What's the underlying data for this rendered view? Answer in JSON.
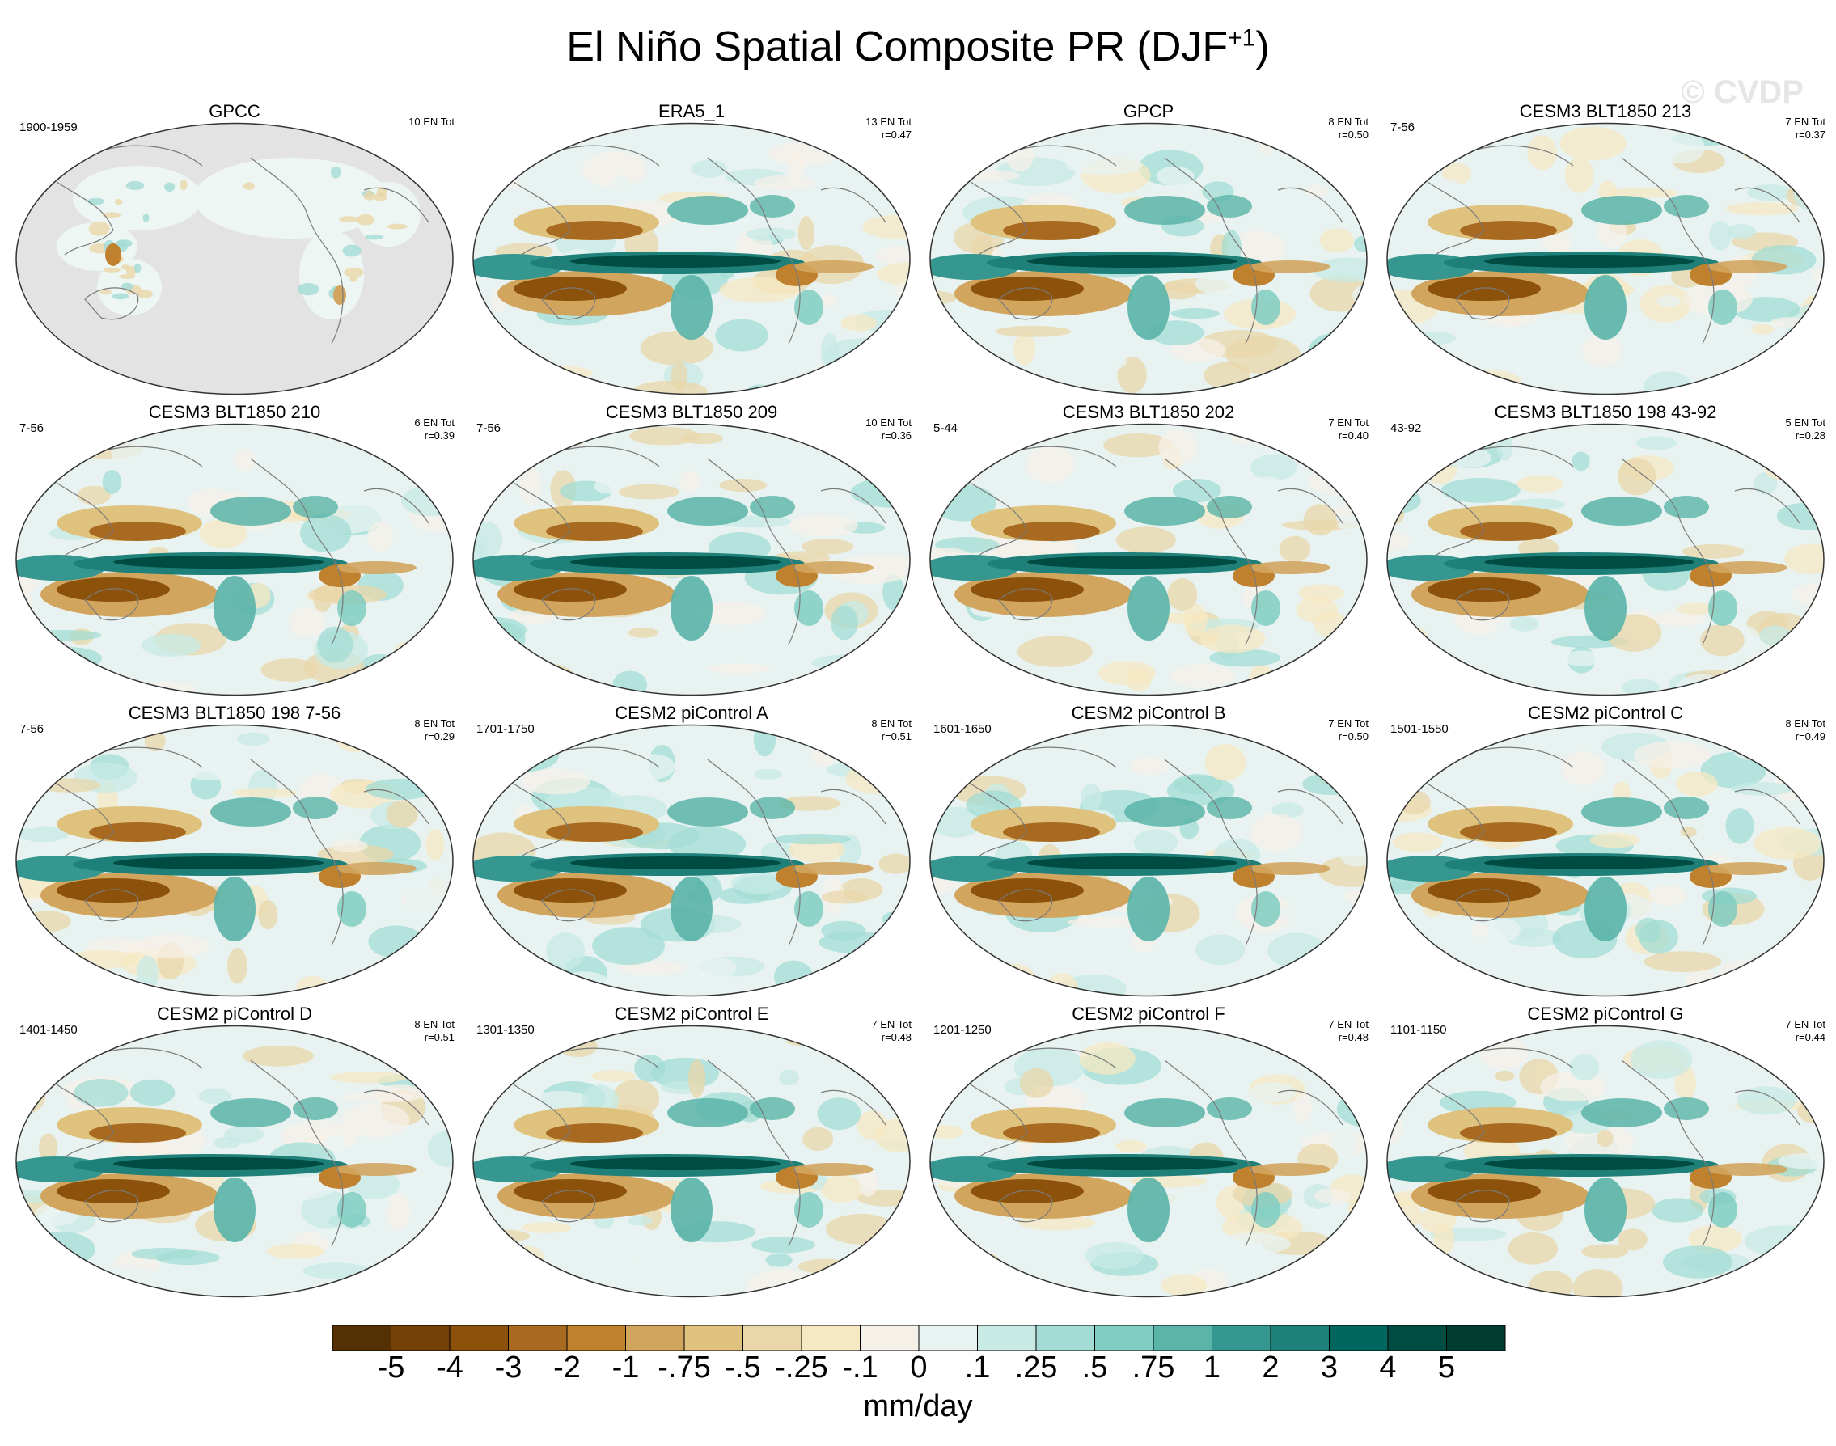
{
  "title_main": "El Niño Spatial Composite PR (DJF",
  "title_sup": "+1",
  "title_close": ")",
  "watermark": "© CVDP",
  "chart_data": {
    "type": "heatmap",
    "title": "El Niño Spatial Composite PR (DJF+1)",
    "units": "mm/day",
    "colorbar": {
      "levels": [
        "-5",
        "-4",
        "-3",
        "-2",
        "-1",
        "-.75",
        "-.5",
        "-.25",
        "-.1",
        "0",
        ".1",
        ".25",
        ".5",
        ".75",
        "1",
        "2",
        "3",
        "4",
        "5"
      ],
      "colors": [
        "#543005",
        "#734008",
        "#8c510a",
        "#a86a20",
        "#bf812d",
        "#d2a55f",
        "#dfc27d",
        "#ead7a9",
        "#f6e8c3",
        "#f5f0e8",
        "#e8f3f1",
        "#c7eae5",
        "#a3dcd4",
        "#80cdc1",
        "#5ab4a8",
        "#35978f",
        "#1e8078",
        "#01665e",
        "#004b42",
        "#003c30"
      ]
    },
    "panels": [
      {
        "name": "GPCC",
        "left": "1900-1959",
        "right1": "10 EN Tot",
        "right2": "",
        "type": "obs-land"
      },
      {
        "name": "ERA5_1",
        "left": "",
        "right1": "13 EN Tot",
        "right2": "r=0.47",
        "type": "full"
      },
      {
        "name": "GPCP",
        "left": "",
        "right1": "8 EN Tot",
        "right2": "r=0.50",
        "type": "full"
      },
      {
        "name": "CESM3 BLT1850 213",
        "left": "7-56",
        "right1": "7 EN Tot",
        "right2": "r=0.37",
        "type": "full"
      },
      {
        "name": "CESM3 BLT1850 210",
        "left": "7-56",
        "right1": "6 EN Tot",
        "right2": "r=0.39",
        "type": "full"
      },
      {
        "name": "CESM3 BLT1850 209",
        "left": "7-56",
        "right1": "10 EN Tot",
        "right2": "r=0.36",
        "type": "full"
      },
      {
        "name": "CESM3 BLT1850 202",
        "left": "5-44",
        "right1": "7 EN Tot",
        "right2": "r=0.40",
        "type": "full"
      },
      {
        "name": "CESM3 BLT1850 198 43-92",
        "left": "43-92",
        "right1": "5 EN Tot",
        "right2": "r=0.28",
        "type": "full"
      },
      {
        "name": "CESM3 BLT1850 198 7-56",
        "left": "7-56",
        "right1": "8 EN Tot",
        "right2": "r=0.29",
        "type": "full"
      },
      {
        "name": "CESM2 piControl A",
        "left": "1701-1750",
        "right1": "8 EN Tot",
        "right2": "r=0.51",
        "type": "full"
      },
      {
        "name": "CESM2 piControl B",
        "left": "1601-1650",
        "right1": "7 EN Tot",
        "right2": "r=0.50",
        "type": "full"
      },
      {
        "name": "CESM2 piControl C",
        "left": "1501-1550",
        "right1": "8 EN Tot",
        "right2": "r=0.49",
        "type": "full"
      },
      {
        "name": "CESM2 piControl D",
        "left": "1401-1450",
        "right1": "8 EN Tot",
        "right2": "r=0.51",
        "type": "full"
      },
      {
        "name": "CESM2 piControl E",
        "left": "1301-1350",
        "right1": "7 EN Tot",
        "right2": "r=0.48",
        "type": "full"
      },
      {
        "name": "CESM2 piControl F",
        "left": "1201-1250",
        "right1": "7 EN Tot",
        "right2": "r=0.48",
        "type": "full"
      },
      {
        "name": "CESM2 piControl G",
        "left": "1101-1150",
        "right1": "7 EN Tot",
        "right2": "r=0.44",
        "type": "full"
      }
    ]
  }
}
